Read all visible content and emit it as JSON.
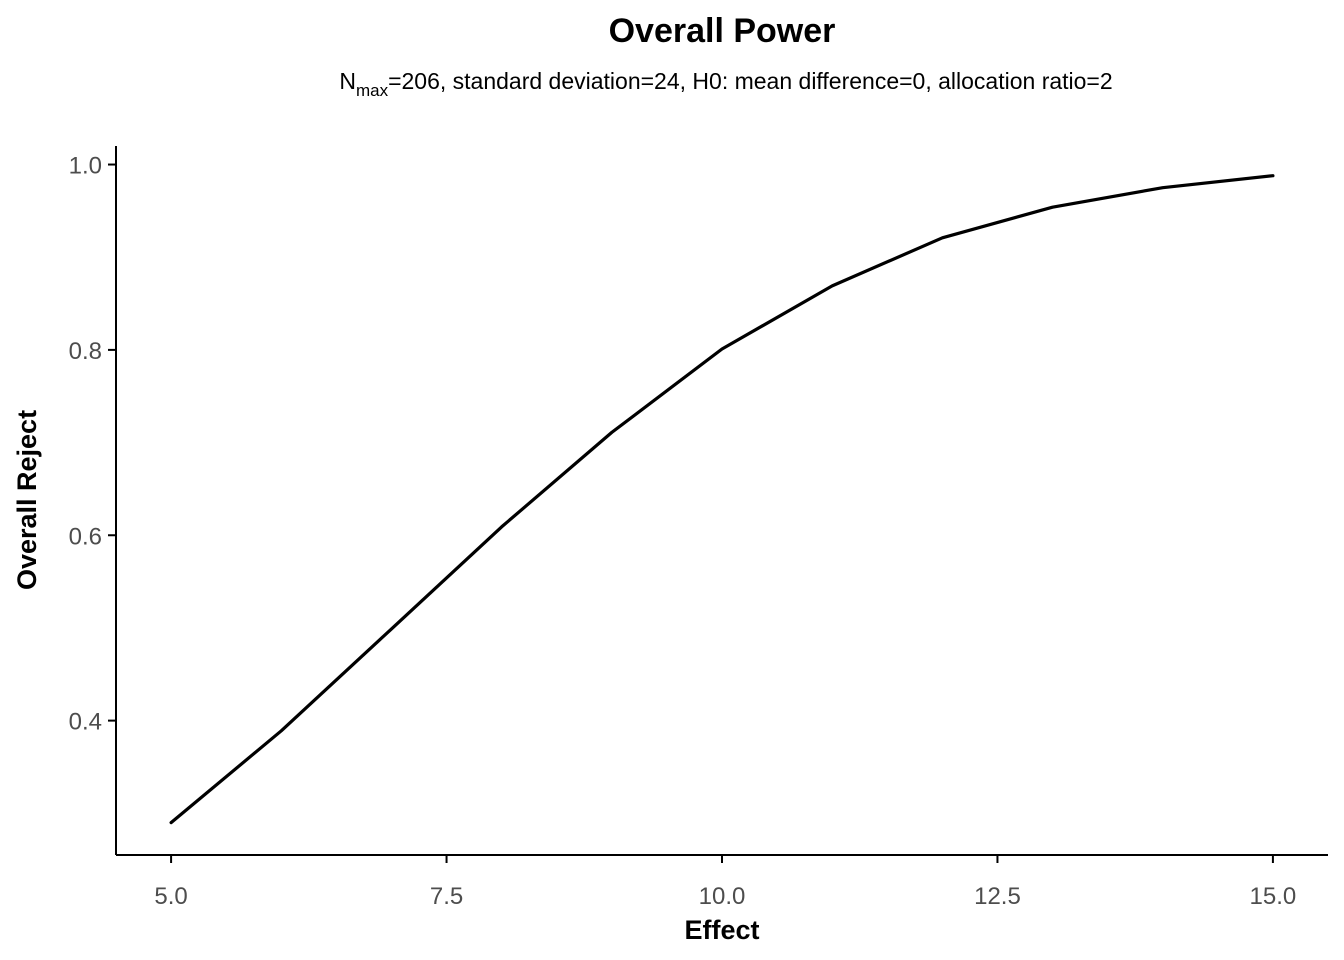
{
  "chart_data": {
    "type": "line",
    "title": "Overall Power",
    "subtitle": {
      "n_symbol": "N",
      "n_subscript": "max",
      "rest": "=206, standard deviation=24, H0: mean difference=0, allocation ratio=2"
    },
    "xlabel": "Effect",
    "ylabel": "Overall Reject",
    "xlim": [
      4.5,
      15.5
    ],
    "ylim": [
      0.255,
      1.02
    ],
    "x_ticks": [
      5.0,
      7.5,
      10.0,
      12.5,
      15.0
    ],
    "x_tick_labels": [
      "5.0",
      "7.5",
      "10.0",
      "12.5",
      "15.0"
    ],
    "y_ticks": [
      0.4,
      0.6,
      0.8,
      1.0
    ],
    "y_tick_labels": [
      "0.4",
      "0.6",
      "0.8",
      "1.0"
    ],
    "grid": false,
    "series": [
      {
        "color": "#000000",
        "x": [
          5,
          6,
          7,
          8,
          9,
          10,
          11,
          12,
          13,
          14,
          15
        ],
        "y": [
          0.29,
          0.389,
          0.499,
          0.609,
          0.711,
          0.801,
          0.869,
          0.921,
          0.954,
          0.975,
          0.988
        ]
      }
    ]
  }
}
